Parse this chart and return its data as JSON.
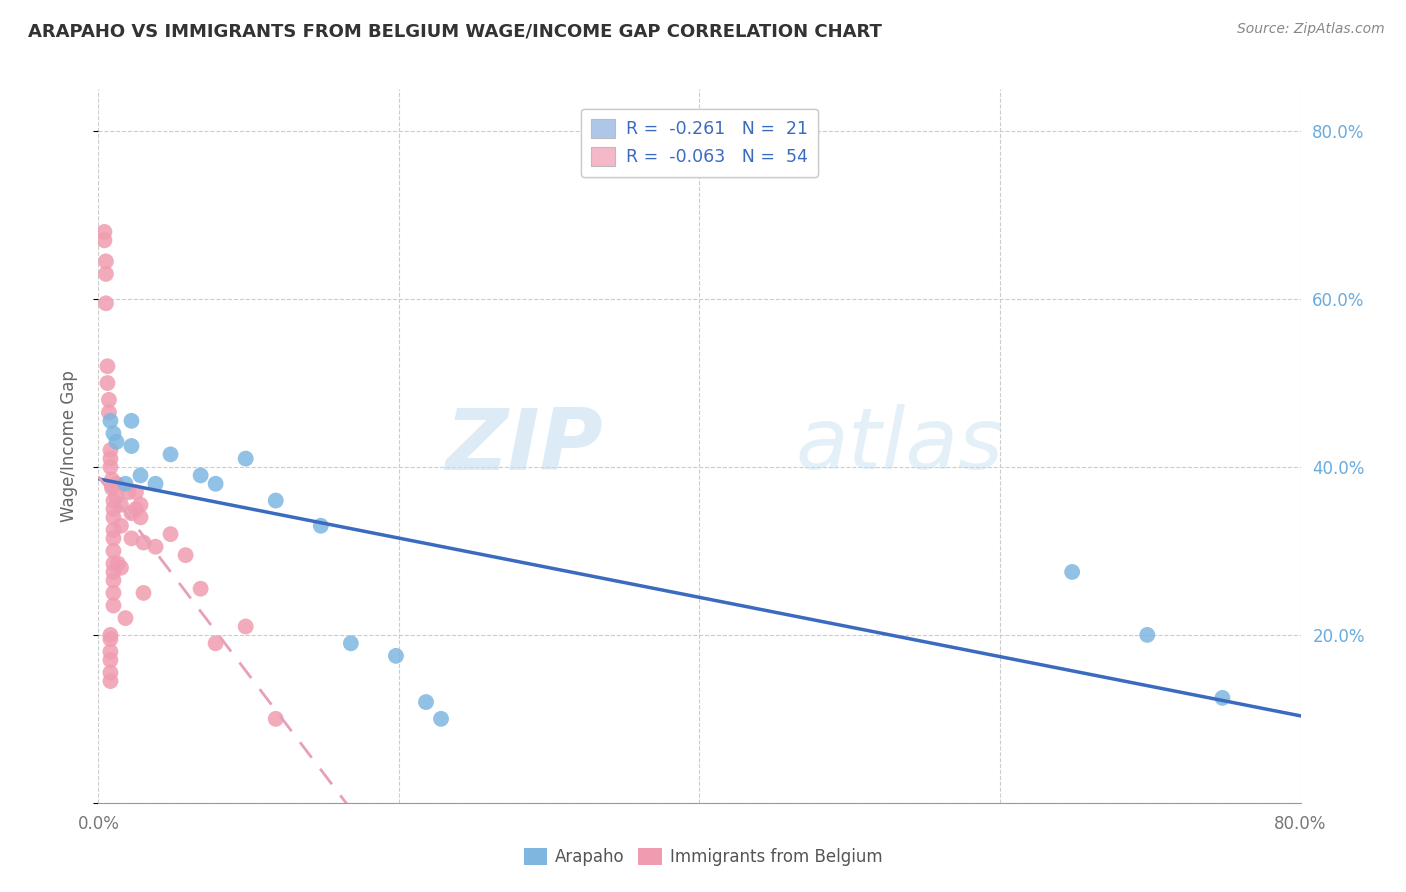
{
  "title": "ARAPAHO VS IMMIGRANTS FROM BELGIUM WAGE/INCOME GAP CORRELATION CHART",
  "source": "Source: ZipAtlas.com",
  "ylabel": "Wage/Income Gap",
  "watermark_zip": "ZIP",
  "watermark_atlas": "atlas",
  "legend_box1_color": "#aec6e8",
  "legend_box2_color": "#f4b8c8",
  "legend_line1": "R =  -0.261   N =  21",
  "legend_line2": "R =  -0.063   N =  54",
  "arapaho_color": "#7eb6e0",
  "belgium_color": "#f09cb0",
  "arapaho_line_color": "#3a6bbf",
  "belgium_line_color": "#e8a0b8",
  "right_ytick_color": "#6aabde",
  "background_color": "#ffffff",
  "grid_color": "#cccccc",
  "arapaho_points": [
    [
      0.008,
      0.455
    ],
    [
      0.01,
      0.44
    ],
    [
      0.012,
      0.43
    ],
    [
      0.018,
      0.38
    ],
    [
      0.022,
      0.455
    ],
    [
      0.022,
      0.425
    ],
    [
      0.028,
      0.39
    ],
    [
      0.038,
      0.38
    ],
    [
      0.048,
      0.415
    ],
    [
      0.068,
      0.39
    ],
    [
      0.078,
      0.38
    ],
    [
      0.098,
      0.41
    ],
    [
      0.118,
      0.36
    ],
    [
      0.148,
      0.33
    ],
    [
      0.168,
      0.19
    ],
    [
      0.198,
      0.175
    ],
    [
      0.218,
      0.12
    ],
    [
      0.228,
      0.1
    ],
    [
      0.648,
      0.275
    ],
    [
      0.698,
      0.2
    ],
    [
      0.748,
      0.125
    ]
  ],
  "belgium_points": [
    [
      0.004,
      0.68
    ],
    [
      0.004,
      0.67
    ],
    [
      0.005,
      0.645
    ],
    [
      0.005,
      0.63
    ],
    [
      0.005,
      0.595
    ],
    [
      0.006,
      0.52
    ],
    [
      0.006,
      0.5
    ],
    [
      0.007,
      0.48
    ],
    [
      0.007,
      0.465
    ],
    [
      0.008,
      0.42
    ],
    [
      0.008,
      0.41
    ],
    [
      0.008,
      0.4
    ],
    [
      0.009,
      0.385
    ],
    [
      0.009,
      0.375
    ],
    [
      0.01,
      0.36
    ],
    [
      0.01,
      0.35
    ],
    [
      0.01,
      0.34
    ],
    [
      0.01,
      0.325
    ],
    [
      0.01,
      0.315
    ],
    [
      0.01,
      0.3
    ],
    [
      0.01,
      0.285
    ],
    [
      0.01,
      0.275
    ],
    [
      0.01,
      0.265
    ],
    [
      0.01,
      0.25
    ],
    [
      0.01,
      0.235
    ],
    [
      0.012,
      0.38
    ],
    [
      0.012,
      0.365
    ],
    [
      0.013,
      0.285
    ],
    [
      0.015,
      0.355
    ],
    [
      0.015,
      0.33
    ],
    [
      0.015,
      0.28
    ],
    [
      0.018,
      0.22
    ],
    [
      0.02,
      0.37
    ],
    [
      0.022,
      0.345
    ],
    [
      0.022,
      0.315
    ],
    [
      0.025,
      0.37
    ],
    [
      0.025,
      0.35
    ],
    [
      0.028,
      0.355
    ],
    [
      0.028,
      0.34
    ],
    [
      0.03,
      0.31
    ],
    [
      0.03,
      0.25
    ],
    [
      0.038,
      0.305
    ],
    [
      0.048,
      0.32
    ],
    [
      0.058,
      0.295
    ],
    [
      0.068,
      0.255
    ],
    [
      0.008,
      0.2
    ],
    [
      0.008,
      0.195
    ],
    [
      0.008,
      0.18
    ],
    [
      0.008,
      0.17
    ],
    [
      0.008,
      0.155
    ],
    [
      0.008,
      0.145
    ],
    [
      0.078,
      0.19
    ],
    [
      0.098,
      0.21
    ],
    [
      0.118,
      0.1
    ]
  ],
  "xlim": [
    0.0,
    0.8
  ],
  "ylim": [
    0.0,
    0.85
  ],
  "yticks": [
    0.0,
    0.2,
    0.4,
    0.6,
    0.8
  ],
  "ytick_labels_right": [
    "",
    "20.0%",
    "40.0%",
    "60.0%",
    "80.0%"
  ],
  "xtick_positions": [
    0.0,
    0.2,
    0.4,
    0.6,
    0.8
  ],
  "xtick_labels": [
    "0.0%",
    "",
    "",
    "",
    "80.0%"
  ]
}
